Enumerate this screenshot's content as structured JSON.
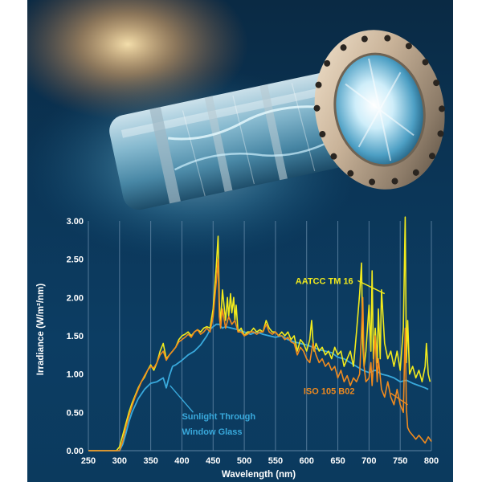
{
  "chart_data": {
    "type": "line",
    "title": "",
    "xlabel": "Wavelength (nm)",
    "ylabel": "Irradiance (W/m²/nm)",
    "xlim": [
      250,
      800
    ],
    "ylim": [
      0,
      3.0
    ],
    "x_ticks": [
      "250",
      "300",
      "350",
      "400",
      "450",
      "500",
      "550",
      "600",
      "650",
      "700",
      "750",
      "800"
    ],
    "y_ticks": [
      "0.00",
      "0.50",
      "1.00",
      "1.50",
      "2.00",
      "2.50",
      "3.00"
    ],
    "grid": "vertical",
    "colors": {
      "aatcc": "#f2ea1c",
      "iso": "#f08a1e",
      "sunlight": "#39a9dc",
      "background": "#0c3d63",
      "grid": "#5f84a3"
    },
    "series": [
      {
        "name": "AATCC TM 16",
        "x": [
          250,
          295,
          300,
          305,
          310,
          315,
          320,
          325,
          330,
          335,
          340,
          345,
          350,
          355,
          360,
          365,
          370,
          375,
          380,
          385,
          390,
          395,
          400,
          405,
          410,
          415,
          420,
          425,
          430,
          435,
          440,
          445,
          450,
          455,
          458,
          460,
          462,
          465,
          470,
          473,
          475,
          478,
          480,
          483,
          485,
          487,
          490,
          495,
          500,
          505,
          510,
          515,
          520,
          525,
          530,
          535,
          540,
          545,
          550,
          555,
          560,
          565,
          570,
          575,
          580,
          585,
          590,
          595,
          600,
          605,
          608,
          610,
          612,
          615,
          620,
          625,
          630,
          635,
          640,
          645,
          650,
          655,
          660,
          665,
          670,
          675,
          680,
          685,
          688,
          690,
          692,
          695,
          700,
          703,
          705,
          707,
          710,
          713,
          715,
          718,
          720,
          725,
          730,
          735,
          740,
          745,
          750,
          755,
          758,
          760,
          762,
          765,
          770,
          775,
          780,
          785,
          790,
          792,
          795,
          798
        ],
        "y": [
          0,
          0,
          0.05,
          0.2,
          0.35,
          0.5,
          0.62,
          0.72,
          0.82,
          0.9,
          0.96,
          1.05,
          1.12,
          1.05,
          1.15,
          1.3,
          1.4,
          1.2,
          1.25,
          1.3,
          1.35,
          1.45,
          1.5,
          1.52,
          1.55,
          1.5,
          1.55,
          1.58,
          1.55,
          1.6,
          1.62,
          1.6,
          1.85,
          2.4,
          2.8,
          1.95,
          1.65,
          2.1,
          1.7,
          2.0,
          1.75,
          2.05,
          1.8,
          2.0,
          1.7,
          1.9,
          1.55,
          1.6,
          1.5,
          1.55,
          1.55,
          1.6,
          1.55,
          1.58,
          1.55,
          1.7,
          1.6,
          1.55,
          1.55,
          1.5,
          1.55,
          1.5,
          1.55,
          1.45,
          1.5,
          1.3,
          1.45,
          1.4,
          1.3,
          1.45,
          1.7,
          1.45,
          1.3,
          1.4,
          1.3,
          1.35,
          1.25,
          1.3,
          1.2,
          1.35,
          1.25,
          1.3,
          1.1,
          1.2,
          1.3,
          1.1,
          1.55,
          2.05,
          2.45,
          1.4,
          1.1,
          1.3,
          1.9,
          1.3,
          2.35,
          1.2,
          1.6,
          1.15,
          1.85,
          1.2,
          2.1,
          1.4,
          1.2,
          1.3,
          1.1,
          1.3,
          1.05,
          1.6,
          3.05,
          1.15,
          1.7,
          1.0,
          1.1,
          0.95,
          1.05,
          0.9,
          1.1,
          1.4,
          1.0,
          0.9
        ]
      },
      {
        "name": "ISO 105 B02",
        "x": [
          250,
          300,
          305,
          310,
          315,
          320,
          325,
          330,
          335,
          340,
          345,
          350,
          355,
          360,
          365,
          370,
          375,
          380,
          385,
          390,
          395,
          400,
          405,
          410,
          415,
          420,
          425,
          430,
          435,
          440,
          445,
          450,
          455,
          458,
          460,
          462,
          465,
          470,
          475,
          480,
          485,
          490,
          495,
          500,
          505,
          510,
          515,
          520,
          525,
          530,
          535,
          540,
          545,
          550,
          555,
          560,
          565,
          570,
          575,
          580,
          585,
          590,
          595,
          600,
          605,
          610,
          615,
          620,
          625,
          630,
          635,
          640,
          645,
          650,
          655,
          660,
          665,
          670,
          675,
          680,
          685,
          688,
          690,
          692,
          695,
          700,
          703,
          705,
          710,
          713,
          715,
          720,
          725,
          730,
          735,
          740,
          745,
          750,
          755,
          758,
          760,
          762,
          765,
          770,
          775,
          780,
          785,
          790,
          795,
          800
        ],
        "y": [
          0,
          0,
          0.12,
          0.3,
          0.45,
          0.58,
          0.7,
          0.8,
          0.9,
          0.98,
          1.05,
          1.1,
          1.08,
          1.15,
          1.25,
          1.3,
          1.18,
          1.25,
          1.3,
          1.35,
          1.42,
          1.45,
          1.48,
          1.52,
          1.48,
          1.55,
          1.58,
          1.52,
          1.55,
          1.6,
          1.55,
          1.75,
          2.2,
          2.5,
          1.75,
          1.6,
          1.85,
          1.6,
          1.75,
          1.65,
          1.7,
          1.55,
          1.55,
          1.5,
          1.52,
          1.55,
          1.55,
          1.52,
          1.55,
          1.55,
          1.65,
          1.55,
          1.52,
          1.55,
          1.5,
          1.5,
          1.45,
          1.48,
          1.42,
          1.4,
          1.25,
          1.35,
          1.3,
          1.2,
          1.15,
          1.4,
          1.25,
          1.15,
          1.2,
          1.1,
          1.15,
          1.05,
          1.1,
          0.95,
          1.05,
          0.9,
          0.98,
          0.85,
          0.95,
          0.9,
          1.0,
          1.55,
          2.0,
          1.1,
          0.9,
          0.95,
          1.15,
          0.85,
          1.5,
          0.9,
          1.2,
          0.8,
          0.7,
          0.9,
          0.7,
          0.6,
          0.8,
          0.6,
          0.5,
          1.6,
          0.55,
          0.3,
          0.25,
          0.2,
          0.15,
          0.2,
          0.15,
          0.1,
          0.18,
          0.12
        ]
      },
      {
        "name": "Sunlight Through Window Glass",
        "x": [
          250,
          300,
          305,
          310,
          315,
          320,
          330,
          340,
          350,
          360,
          370,
          375,
          380,
          385,
          390,
          400,
          410,
          420,
          430,
          440,
          445,
          450,
          455,
          460,
          465,
          470,
          480,
          490,
          500,
          510,
          520,
          530,
          540,
          550,
          560,
          570,
          580,
          590,
          600,
          610,
          620,
          630,
          640,
          650,
          660,
          670,
          680,
          690,
          700,
          710,
          720,
          730,
          740,
          750,
          760,
          770,
          780,
          790,
          795
        ],
        "y": [
          0,
          0,
          0.08,
          0.22,
          0.38,
          0.5,
          0.68,
          0.8,
          0.88,
          0.9,
          0.95,
          0.82,
          0.98,
          1.1,
          1.12,
          1.18,
          1.25,
          1.3,
          1.38,
          1.5,
          1.58,
          1.62,
          1.65,
          1.65,
          1.6,
          1.62,
          1.6,
          1.58,
          1.55,
          1.52,
          1.55,
          1.52,
          1.5,
          1.48,
          1.5,
          1.45,
          1.42,
          1.4,
          1.38,
          1.35,
          1.32,
          1.3,
          1.28,
          1.22,
          1.2,
          1.15,
          1.1,
          1.05,
          1.02,
          1.05,
          1.0,
          0.98,
          0.95,
          0.9,
          0.92,
          0.88,
          0.85,
          0.82,
          0.8
        ]
      }
    ],
    "annotations": [
      {
        "text": "AATCC TM 16",
        "series": "aatcc"
      },
      {
        "text": "ISO 105 B02",
        "series": "iso"
      },
      {
        "text": "Sunlight Through",
        "series": "sunlight"
      },
      {
        "text": "Window Glass",
        "series": "sunlight"
      }
    ]
  }
}
